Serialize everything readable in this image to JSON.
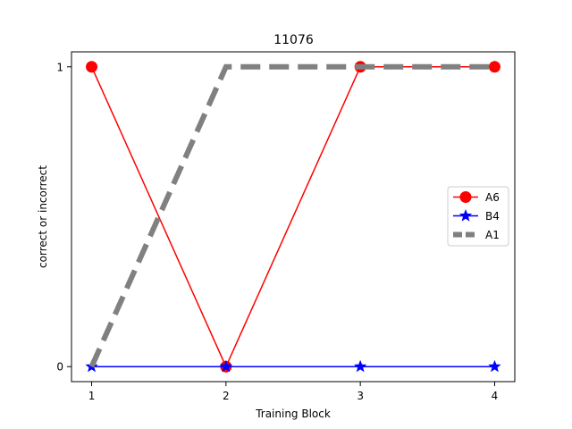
{
  "chart_data": {
    "type": "line",
    "title": "11076",
    "xlabel": "Training Block",
    "ylabel": "correct or incorrect",
    "x": [
      1,
      2,
      3,
      4
    ],
    "xticks": [
      "1",
      "2",
      "3",
      "4"
    ],
    "yticks": [
      "0",
      "1"
    ],
    "xlim": [
      0.85,
      4.15
    ],
    "ylim": [
      -0.05,
      1.05
    ],
    "grid": false,
    "legend_position": "center-right",
    "series": [
      {
        "name": "A6",
        "values": [
          1,
          0,
          1,
          1
        ],
        "color": "#ff0000",
        "marker": "circle",
        "linestyle": "solid"
      },
      {
        "name": "B4",
        "values": [
          0,
          0,
          0,
          0
        ],
        "color": "#0000ff",
        "marker": "star",
        "linestyle": "solid"
      },
      {
        "name": "A1",
        "values": [
          0,
          1,
          1,
          1
        ],
        "color": "#808080",
        "marker": "none",
        "linestyle": "dashed"
      }
    ]
  }
}
